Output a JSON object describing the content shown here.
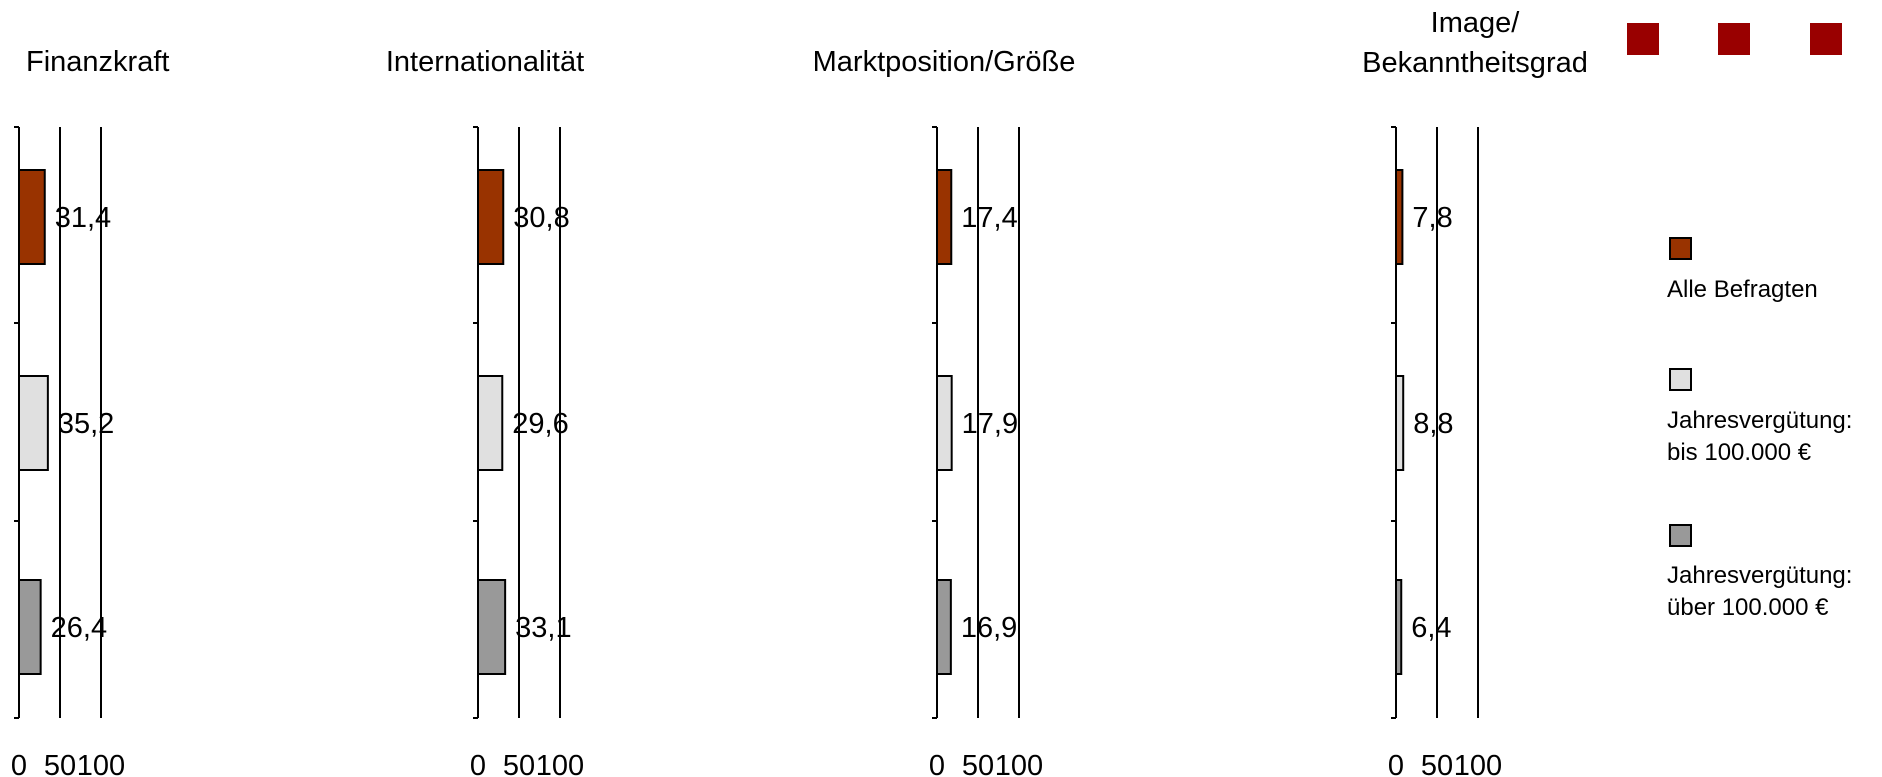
{
  "colors": {
    "alle": "#993300",
    "bis": "#e0e0e0",
    "ueber": "#999999",
    "deco": "#990000"
  },
  "legend": [
    {
      "key": "alle",
      "label": "Alle Befragten"
    },
    {
      "key": "bis",
      "label": "Jahresvergütung: bis 100.000 €"
    },
    {
      "key": "ueber",
      "label": "Jahresvergütung: über 100.000 €"
    }
  ],
  "chart_data": [
    {
      "type": "bar",
      "title": "Finanzkraft",
      "series": [
        {
          "name": "Alle Befragten",
          "value": 31.4,
          "label": "31,4"
        },
        {
          "name": "Jahresvergütung: bis 100.000 €",
          "value": 35.2,
          "label": "35,2"
        },
        {
          "name": "Jahresvergütung: über 100.000 €",
          "value": 26.4,
          "label": "26,4"
        }
      ],
      "xlim": [
        0,
        100
      ],
      "xticks": [
        "0",
        "50",
        "100"
      ]
    },
    {
      "type": "bar",
      "title": "Internationalität",
      "series": [
        {
          "name": "Alle Befragten",
          "value": 30.8,
          "label": "30,8"
        },
        {
          "name": "Jahresvergütung: bis 100.000 €",
          "value": 29.6,
          "label": "29,6"
        },
        {
          "name": "Jahresvergütung: über 100.000 €",
          "value": 33.1,
          "label": "33,1"
        }
      ],
      "xlim": [
        0,
        100
      ],
      "xticks": [
        "0",
        "50",
        "100"
      ]
    },
    {
      "type": "bar",
      "title": "Marktposition/Größe",
      "series": [
        {
          "name": "Alle Befragten",
          "value": 17.4,
          "label": "17,4"
        },
        {
          "name": "Jahresvergütung: bis 100.000 €",
          "value": 17.9,
          "label": "17,9"
        },
        {
          "name": "Jahresvergütung: über 100.000 €",
          "value": 16.9,
          "label": "16,9"
        }
      ],
      "xlim": [
        0,
        100
      ],
      "xticks": [
        "0",
        "50",
        "100"
      ]
    },
    {
      "type": "bar",
      "title": "Image/ Bekanntheitsgrad",
      "title_lines": [
        "Image/",
        "Bekanntheitsgrad"
      ],
      "series": [
        {
          "name": "Alle Befragten",
          "value": 7.8,
          "label": "7,8"
        },
        {
          "name": "Jahresvergütung: bis 100.000 €",
          "value": 8.8,
          "label": "8,8"
        },
        {
          "name": "Jahresvergütung: über 100.000 €",
          "value": 6.4,
          "label": "6,4"
        }
      ],
      "xlim": [
        0,
        100
      ],
      "xticks": [
        "0",
        "50",
        "100"
      ]
    }
  ]
}
